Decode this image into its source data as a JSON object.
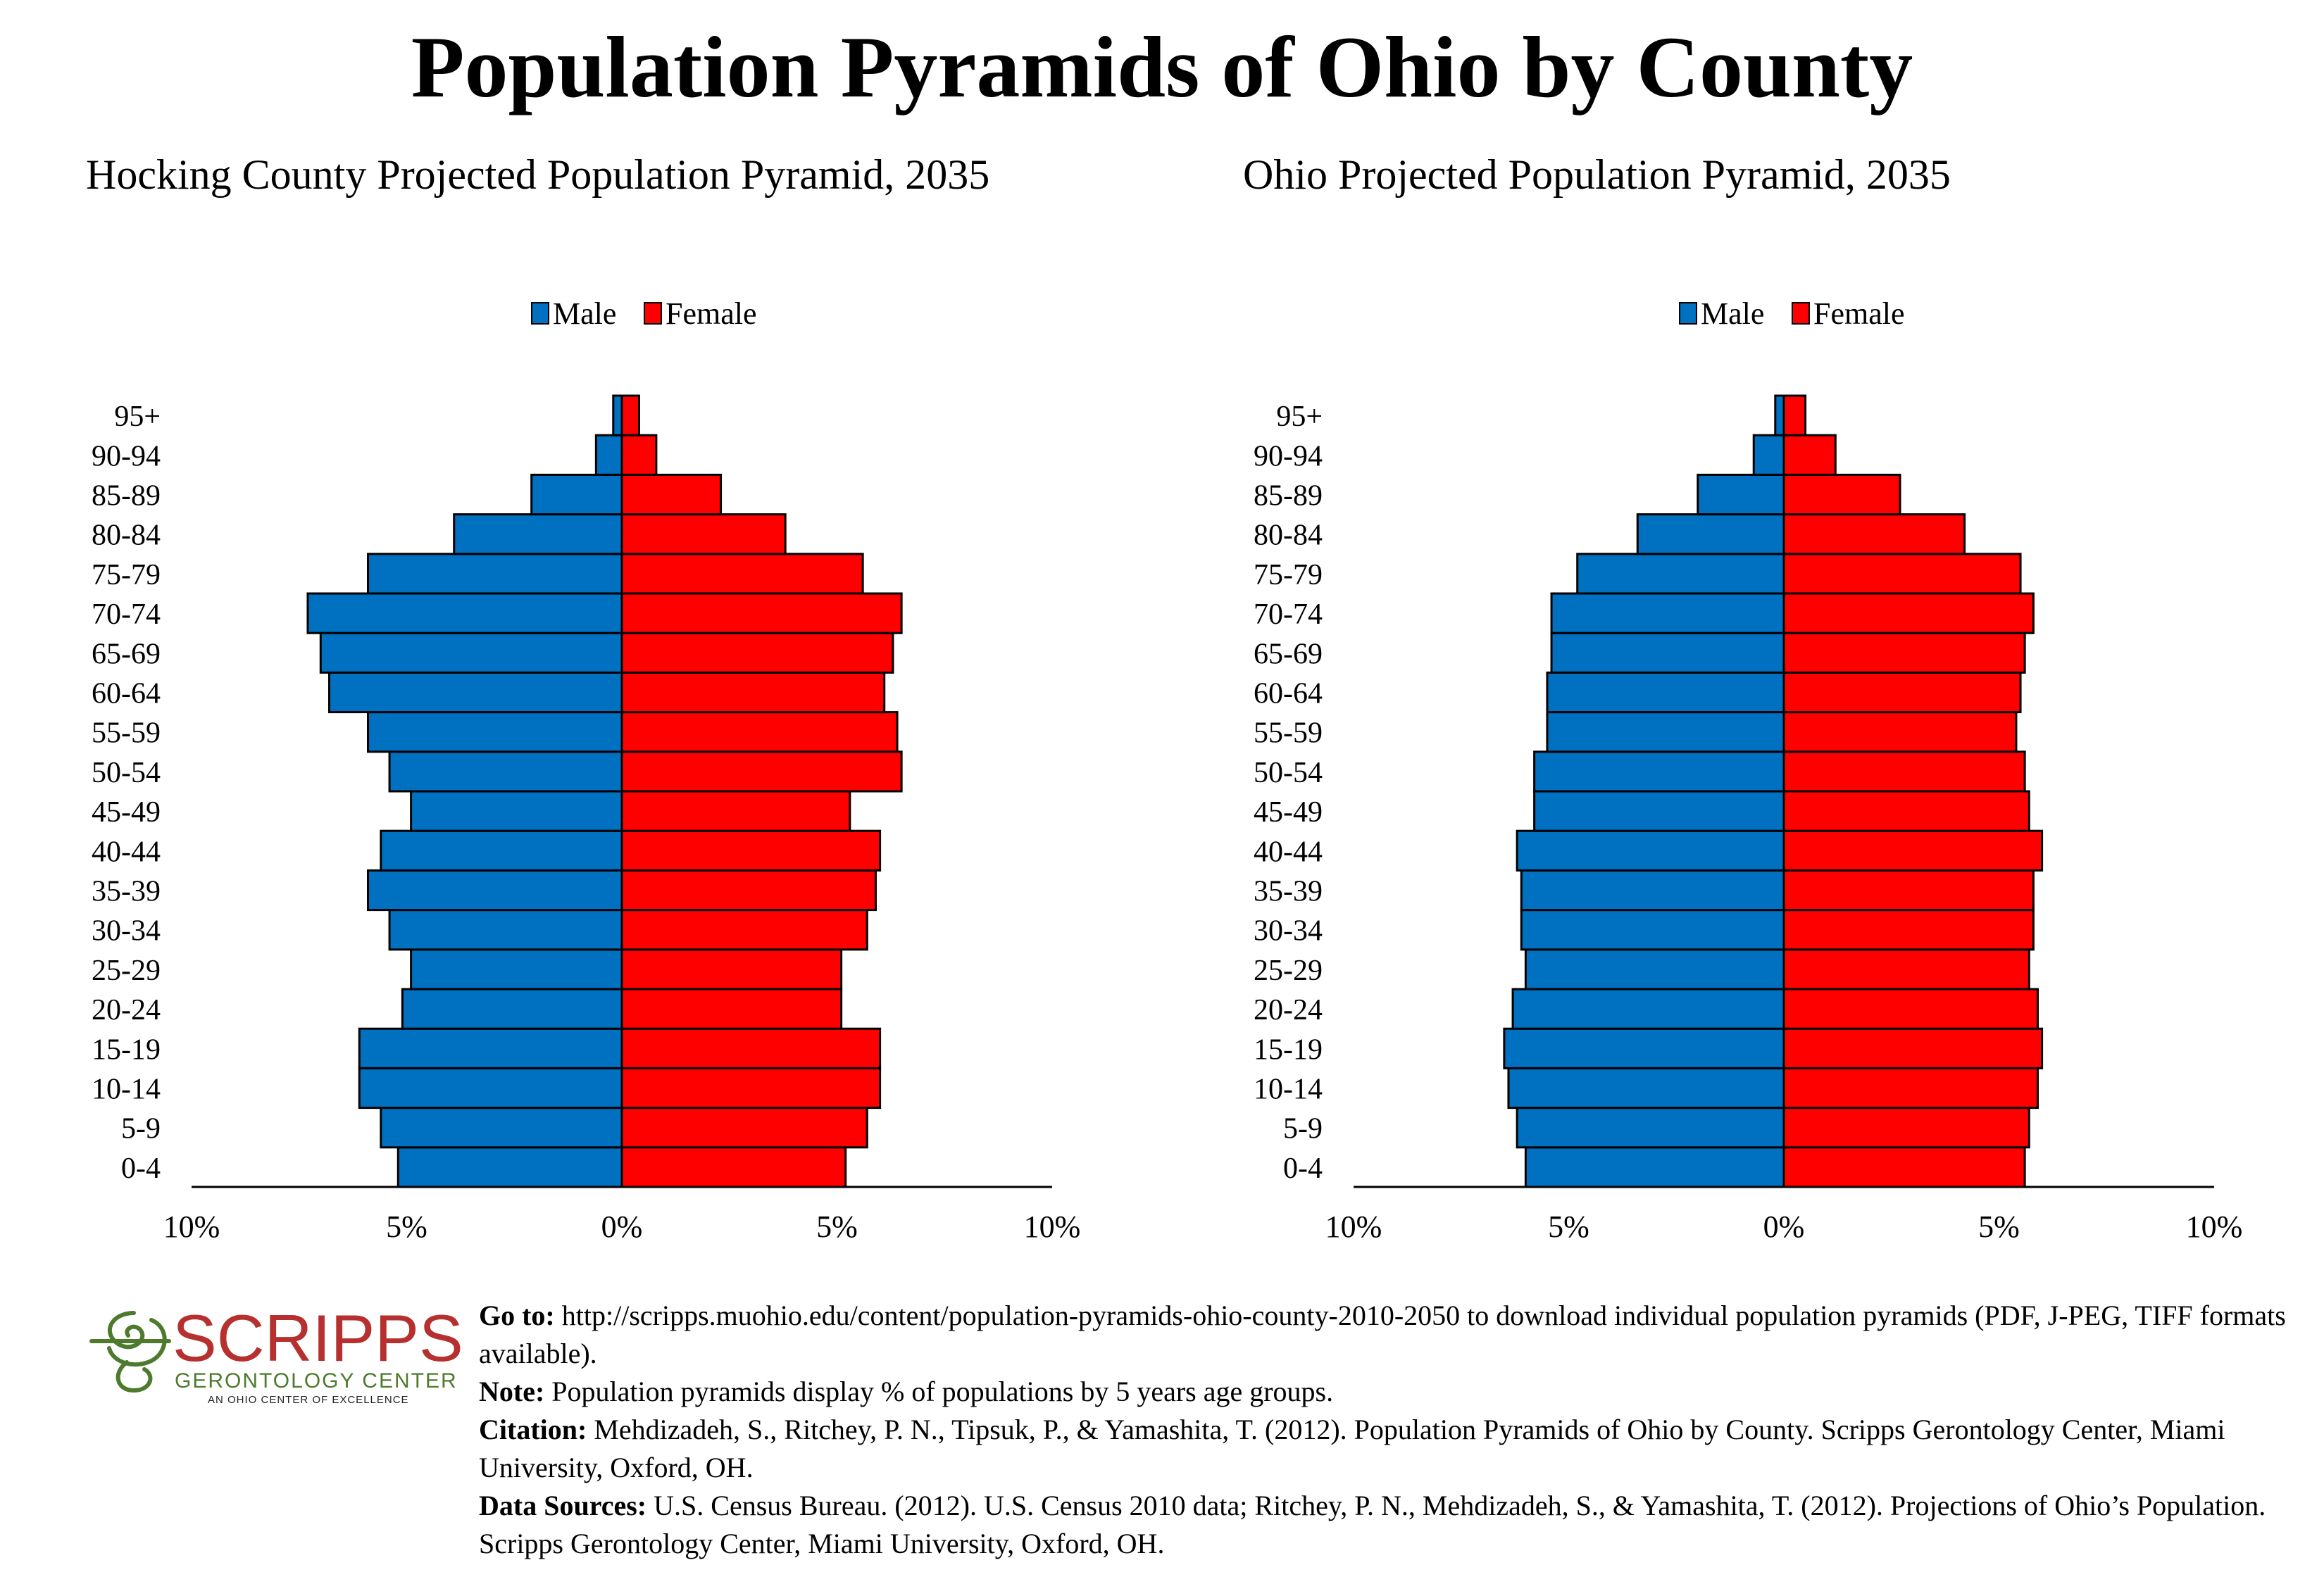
{
  "page_title": "Population Pyramids of Ohio by County",
  "chart_data": [
    {
      "type": "bar",
      "orientation": "horizontal-pyramid",
      "title": "Hocking County Projected Population Pyramid, 2035",
      "categories": [
        "0-4",
        "5-9",
        "10-14",
        "15-19",
        "20-24",
        "25-29",
        "30-34",
        "35-39",
        "40-44",
        "45-49",
        "50-54",
        "55-59",
        "60-64",
        "65-69",
        "70-74",
        "75-79",
        "80-84",
        "85-89",
        "90-94",
        "95+"
      ],
      "series": [
        {
          "name": "Male",
          "color": "#0070C0",
          "values": [
            5.2,
            5.6,
            6.1,
            6.1,
            5.1,
            4.9,
            5.4,
            5.9,
            5.6,
            4.9,
            5.4,
            5.9,
            6.8,
            7.0,
            7.3,
            5.9,
            3.9,
            2.1,
            0.6,
            0.2
          ]
        },
        {
          "name": "Female",
          "color": "#FF0000",
          "values": [
            5.2,
            5.7,
            6.0,
            6.0,
            5.1,
            5.1,
            5.7,
            5.9,
            6.0,
            5.3,
            6.5,
            6.4,
            6.1,
            6.3,
            6.5,
            5.6,
            3.8,
            2.3,
            0.8,
            0.4
          ]
        }
      ],
      "xlim": [
        -10,
        10
      ],
      "xticks": [
        "10%",
        "5%",
        "0%",
        "5%",
        "10%"
      ],
      "legend": "top-center"
    },
    {
      "type": "bar",
      "orientation": "horizontal-pyramid",
      "title": "Ohio Projected Population Pyramid, 2035",
      "categories": [
        "0-4",
        "5-9",
        "10-14",
        "15-19",
        "20-24",
        "25-29",
        "30-34",
        "35-39",
        "40-44",
        "45-49",
        "50-54",
        "55-59",
        "60-64",
        "65-69",
        "70-74",
        "75-79",
        "80-84",
        "85-89",
        "90-94",
        "95+"
      ],
      "series": [
        {
          "name": "Male",
          "color": "#0070C0",
          "values": [
            6.0,
            6.2,
            6.4,
            6.5,
            6.3,
            6.0,
            6.1,
            6.1,
            6.2,
            5.8,
            5.8,
            5.5,
            5.5,
            5.4,
            5.4,
            4.8,
            3.4,
            2.0,
            0.7,
            0.2
          ]
        },
        {
          "name": "Female",
          "color": "#FF0000",
          "values": [
            5.6,
            5.7,
            5.9,
            6.0,
            5.9,
            5.7,
            5.8,
            5.8,
            6.0,
            5.7,
            5.6,
            5.4,
            5.5,
            5.6,
            5.8,
            5.5,
            4.2,
            2.7,
            1.2,
            0.5
          ]
        }
      ],
      "xlim": [
        -10,
        10
      ],
      "xticks": [
        "10%",
        "5%",
        "0%",
        "5%",
        "10%"
      ],
      "legend": "top-center"
    }
  ],
  "logo": {
    "name": "SCRIPPS",
    "line2": "GERONTOLOGY CENTER",
    "line3": "AN OHIO CENTER OF EXCELLENCE",
    "color": "#B5302E",
    "accent": "#4E7A2E"
  },
  "footer": {
    "goto_label": "Go to:",
    "goto_text": " http://scripps.muohio.edu/content/population-pyramids-ohio-county-2010-2050 to download individual population pyramids (PDF, J-PEG, TIFF formats available).",
    "note_label": "Note:",
    "note_text": " Population pyramids display % of populations by 5 years age groups.",
    "citation_label": "Citation:",
    "citation_text": " Mehdizadeh, S., Ritchey, P. N., Tipsuk, P., & Yamashita, T. (2012). Population Pyramids of Ohio by County. Scripps Gerontology Center, Miami University, Oxford, OH.",
    "sources_label": "Data Sources:",
    "sources_text": " U.S. Census Bureau. (2012). U.S. Census 2010 data; Ritchey, P. N., Mehdizadeh, S., & Yamashita, T. (2012). Projections of Ohio’s Population. Scripps Gerontology Center, Miami University, Oxford, OH."
  }
}
